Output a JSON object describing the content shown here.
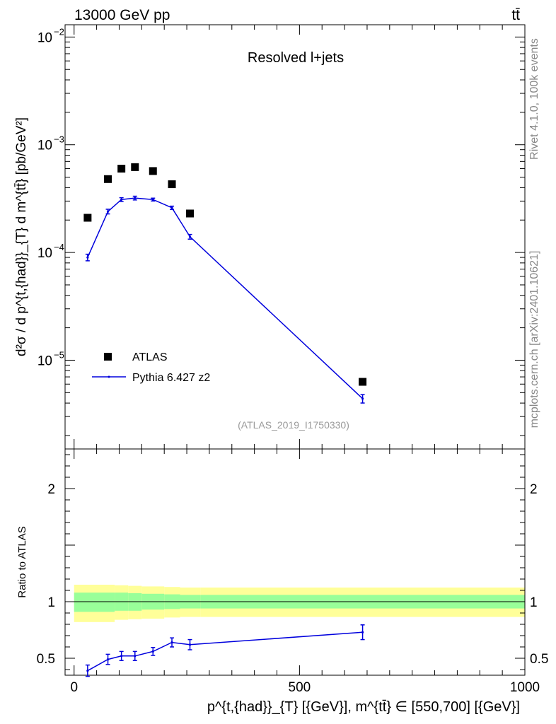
{
  "header": {
    "energy_label": "13000 GeV pp",
    "process_label": "tt̄"
  },
  "side_labels": {
    "rivet": "Rivet 4.1.0,  100k events",
    "site": "mcplots.cern.ch [arXiv:2401.10621]"
  },
  "colors": {
    "atlas_marker": "#000000",
    "pythia_line": "#0000dd",
    "band_inner": "#99ff99",
    "band_outer": "#ffff99"
  },
  "chart_data": [
    {
      "type": "scatter",
      "panel": "main",
      "title": "Resolved l+jets",
      "analysis_id": "(ATLAS_2019_I1750330)",
      "ylabel": "d²σ / d p^{t,{had}}_{T} d m^{tt̄} [pb/GeV²]",
      "yscale": "log",
      "ylim": [
        1.5e-06,
        0.013
      ],
      "xlim": [
        -20,
        1000
      ],
      "y_ticks": [
        {
          "value": 1e-05,
          "base": "10",
          "exp": "−5"
        },
        {
          "value": 0.0001,
          "base": "10",
          "exp": "−4"
        },
        {
          "value": 0.001,
          "base": "10",
          "exp": "−3"
        },
        {
          "value": 0.01,
          "base": "10",
          "exp": "−2"
        }
      ],
      "legend": [
        "ATLAS",
        "Pythia 6.427 z2"
      ],
      "series": [
        {
          "name": "ATLAS",
          "x": [
            30,
            75,
            105,
            135,
            175,
            217,
            257,
            640
          ],
          "y": [
            0.00021,
            0.00048,
            0.0006,
            0.00062,
            0.00057,
            0.00043,
            0.00023,
            6.3e-06
          ]
        },
        {
          "name": "Pythia 6.427 z2",
          "x": [
            30,
            75,
            105,
            135,
            175,
            217,
            257,
            640
          ],
          "y": [
            9e-05,
            0.00024,
            0.00031,
            0.00032,
            0.00031,
            0.00026,
            0.00014,
            4.4e-06
          ],
          "err": [
            0.07,
            0.05,
            0.04,
            0.04,
            0.03,
            0.035,
            0.05,
            0.09
          ]
        }
      ]
    },
    {
      "type": "line",
      "panel": "ratio",
      "ylabel": "Ratio to ATLAS",
      "xlabel": "p^{t,{had}}_{T} [{GeV}], m^{tt̄} ∈ [550,700] [{GeV}]",
      "ylim": [
        0.35,
        2.35
      ],
      "xlim": [
        -20,
        1000
      ],
      "x_ticks": [
        "0",
        "500",
        "1000"
      ],
      "y_ticks": [
        "0.5",
        "1",
        "2"
      ],
      "band_edges": [
        0,
        90,
        120,
        150,
        200,
        235,
        280,
        1000
      ],
      "band_inner": [
        [
          0.91,
          1.08
        ],
        [
          0.92,
          1.08
        ],
        [
          0.92,
          1.075
        ],
        [
          0.93,
          1.07
        ],
        [
          0.935,
          1.065
        ],
        [
          0.94,
          1.06
        ],
        [
          0.94,
          1.06
        ]
      ],
      "band_outer": [
        [
          0.82,
          1.15
        ],
        [
          0.84,
          1.145
        ],
        [
          0.845,
          1.14
        ],
        [
          0.85,
          1.135
        ],
        [
          0.86,
          1.13
        ],
        [
          0.865,
          1.125
        ],
        [
          0.865,
          1.125
        ]
      ],
      "series": [
        {
          "name": "Pythia 6.427 z2 / ATLAS",
          "x": [
            30,
            75,
            105,
            135,
            175,
            217,
            257,
            640
          ],
          "y": [
            0.39,
            0.49,
            0.52,
            0.52,
            0.56,
            0.64,
            0.62,
            0.73
          ],
          "err": [
            0.05,
            0.045,
            0.04,
            0.04,
            0.035,
            0.04,
            0.045,
            0.065
          ]
        }
      ]
    }
  ]
}
